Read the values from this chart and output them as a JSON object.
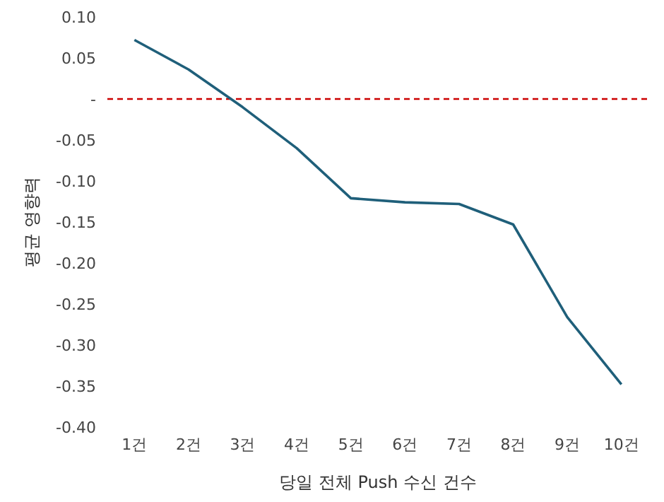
{
  "chart_data": {
    "type": "line",
    "xlabel": "당일 전체 Push 수신 건수",
    "ylabel": "평균 영향력",
    "categories": [
      "1건",
      "2건",
      "3건",
      "4건",
      "5건",
      "6건",
      "7건",
      "8건",
      "9건",
      "10건"
    ],
    "series": [
      {
        "color": "#1f5f7a",
        "values": [
          0.072,
          0.036,
          -0.01,
          -0.06,
          -0.121,
          -0.126,
          -0.128,
          -0.153,
          -0.266,
          -0.348
        ]
      }
    ],
    "ylim": [
      -0.4,
      0.1
    ],
    "yticks": [
      {
        "value": 0.1,
        "label": "0.10"
      },
      {
        "value": 0.05,
        "label": "0.05"
      },
      {
        "value": 0,
        "label": "-"
      },
      {
        "value": -0.05,
        "label": "-0.05"
      },
      {
        "value": -0.1,
        "label": "-0.10"
      },
      {
        "value": -0.15,
        "label": "-0.15"
      },
      {
        "value": -0.2,
        "label": "-0.20"
      },
      {
        "value": -0.25,
        "label": "-0.25"
      },
      {
        "value": -0.3,
        "label": "-0.30"
      },
      {
        "value": -0.35,
        "label": "-0.35"
      },
      {
        "value": -0.4,
        "label": "-0.40"
      }
    ],
    "ref_lines": [
      {
        "axis": "y",
        "value": 0,
        "color": "#cc0000",
        "line_style": "dashed"
      }
    ],
    "grid": false,
    "legend": false,
    "marker": "none",
    "line_style": "solid"
  }
}
